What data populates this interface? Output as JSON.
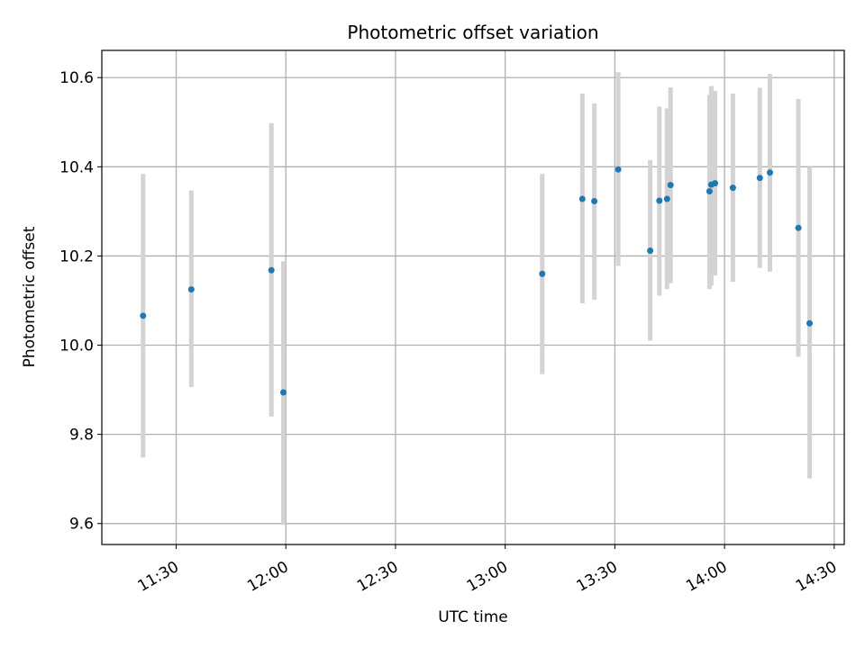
{
  "chart_data": {
    "type": "scatter",
    "title": "Photometric offset variation",
    "xlabel": "UTC time",
    "ylabel": "Photometric offset",
    "x_ticks": [
      "11:30",
      "12:00",
      "12:30",
      "13:00",
      "13:30",
      "14:00",
      "14:30"
    ],
    "y_ticks": [
      "9.6",
      "9.8",
      "10.0",
      "10.2",
      "10.4",
      "10.6"
    ],
    "xlim": [
      "11:09:40",
      "14:32:45"
    ],
    "ylim": [
      9.553,
      10.661
    ],
    "grid": true,
    "colors": {
      "point": "#1f77b4",
      "errorbar": "#d3d3d3",
      "grid": "#b0b0b0"
    },
    "series": [
      {
        "x": [
          "11:20:57",
          "11:34:09",
          "11:56:03",
          "11:59:20",
          "13:10:08",
          "13:21:06",
          "13:24:23",
          "13:30:55",
          "13:39:40",
          "13:42:10",
          "13:44:16",
          "13:45:14",
          "13:55:53",
          "13:56:23",
          "13:57:23",
          "14:02:17",
          "14:09:39",
          "14:12:25",
          "14:20:12",
          "14:23:16"
        ],
        "y": [
          10.066,
          10.125,
          10.168,
          9.894,
          10.16,
          10.328,
          10.323,
          10.394,
          10.212,
          10.324,
          10.328,
          10.359,
          10.345,
          10.36,
          10.363,
          10.353,
          10.375,
          10.387,
          10.263,
          10.049
        ],
        "yerr_low": [
          9.748,
          9.906,
          9.84,
          9.597,
          9.935,
          10.094,
          10.102,
          10.178,
          10.01,
          10.111,
          10.126,
          10.139,
          10.126,
          10.134,
          10.156,
          10.142,
          10.173,
          10.165,
          9.974,
          9.701
        ],
        "yerr_high": [
          10.384,
          10.347,
          10.498,
          10.188,
          10.384,
          10.564,
          10.542,
          10.612,
          10.415,
          10.535,
          10.531,
          10.578,
          10.561,
          10.581,
          10.57,
          10.564,
          10.577,
          10.608,
          10.552,
          10.4
        ]
      }
    ]
  }
}
